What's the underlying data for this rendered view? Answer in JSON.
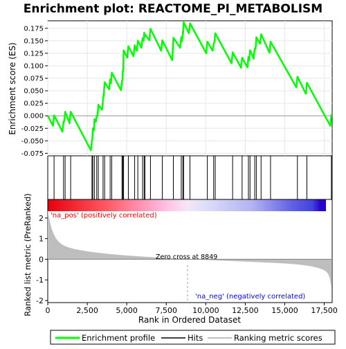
{
  "chart_data": {
    "type": "line",
    "title": "Enrichment plot: REACTOME_PI_METABOLISM",
    "xlabel": "Rank in Ordered Dataset",
    "ylabel_top": "Enrichment score (ES)",
    "ylabel_bottom": "Ranked list metric (PreRanked)",
    "xlim": [
      0,
      18000
    ],
    "x_ticks": [
      0,
      2500,
      5000,
      7500,
      10000,
      12500,
      15000,
      17500
    ],
    "x_tick_labels": [
      "0",
      "2,500",
      "5,000",
      "7,500",
      "10,000",
      "12,500",
      "15,000",
      "17,500"
    ],
    "es_ylim": [
      -0.08,
      0.19
    ],
    "es_ticks": [
      -0.075,
      -0.05,
      -0.025,
      0.0,
      0.025,
      0.05,
      0.075,
      0.1,
      0.125,
      0.15,
      0.175
    ],
    "es_tick_labels": [
      "-0.075",
      "-0.050",
      "-0.025",
      "0.000",
      "0.025",
      "0.050",
      "0.075",
      "0.100",
      "0.125",
      "0.150",
      "0.175"
    ],
    "metric_ylim": [
      -2.1,
      2.9
    ],
    "metric_ticks": [
      -2,
      -1,
      0,
      1,
      2
    ],
    "metric_tick_labels": [
      "-2",
      "-1",
      "0",
      "1",
      "2"
    ],
    "hits": [
      400,
      1000,
      1100,
      1450,
      2800,
      2850,
      2950,
      3100,
      3200,
      3500,
      3600,
      3950,
      4050,
      4700,
      4750,
      4800,
      5100,
      5500,
      5700,
      6000,
      6100,
      6150,
      6500,
      7250,
      7950,
      8450,
      8550,
      8600,
      9000,
      10100,
      10500,
      10600,
      11700,
      12300,
      12700,
      12800,
      13100,
      13200,
      13500,
      14100,
      15800,
      16400,
      17950
    ],
    "es_points": [
      [
        0,
        0.0
      ],
      [
        330,
        -0.02
      ],
      [
        400,
        0.001
      ],
      [
        930,
        -0.032
      ],
      [
        1000,
        -0.011
      ],
      [
        1050,
        -0.011
      ],
      [
        1100,
        0.008
      ],
      [
        1380,
        -0.015
      ],
      [
        1450,
        0.008
      ],
      [
        2730,
        -0.069
      ],
      [
        2800,
        -0.048
      ],
      [
        2820,
        -0.048
      ],
      [
        2850,
        -0.025
      ],
      [
        2920,
        -0.029
      ],
      [
        2950,
        -0.007
      ],
      [
        3050,
        -0.012
      ],
      [
        3100,
        0.0
      ],
      [
        3150,
        0.0
      ],
      [
        3200,
        0.022
      ],
      [
        3430,
        0.012
      ],
      [
        3500,
        0.032
      ],
      [
        3550,
        0.046
      ],
      [
        3600,
        0.067
      ],
      [
        3880,
        0.053
      ],
      [
        3950,
        0.073
      ],
      [
        4000,
        0.065
      ],
      [
        4050,
        0.086
      ],
      [
        4640,
        0.051
      ],
      [
        4700,
        0.071
      ],
      [
        4730,
        0.071
      ],
      [
        4750,
        0.09
      ],
      [
        4770,
        0.09
      ],
      [
        4800,
        0.131
      ],
      [
        5030,
        0.116
      ],
      [
        5100,
        0.139
      ],
      [
        5430,
        0.119
      ],
      [
        5500,
        0.141
      ],
      [
        5630,
        0.13
      ],
      [
        5700,
        0.15
      ],
      [
        5930,
        0.136
      ],
      [
        6000,
        0.155
      ],
      [
        6060,
        0.15
      ],
      [
        6100,
        0.166
      ],
      [
        6130,
        0.158
      ],
      [
        6150,
        0.163
      ],
      [
        6430,
        0.151
      ],
      [
        6500,
        0.174
      ],
      [
        7180,
        0.13
      ],
      [
        7250,
        0.151
      ],
      [
        7880,
        0.111
      ],
      [
        7950,
        0.156
      ],
      [
        8380,
        0.136
      ],
      [
        8450,
        0.157
      ],
      [
        8500,
        0.149
      ],
      [
        8550,
        0.169
      ],
      [
        8570,
        0.165
      ],
      [
        8600,
        0.187
      ],
      [
        8930,
        0.165
      ],
      [
        9000,
        0.185
      ],
      [
        10030,
        0.125
      ],
      [
        10100,
        0.148
      ],
      [
        10430,
        0.13
      ],
      [
        10500,
        0.145
      ],
      [
        10550,
        0.147
      ],
      [
        10600,
        0.165
      ],
      [
        11630,
        0.105
      ],
      [
        11700,
        0.127
      ],
      [
        12230,
        0.096
      ],
      [
        12300,
        0.116
      ],
      [
        12630,
        0.097
      ],
      [
        12700,
        0.118
      ],
      [
        12750,
        0.111
      ],
      [
        12800,
        0.131
      ],
      [
        13030,
        0.114
      ],
      [
        13100,
        0.135
      ],
      [
        13150,
        0.134
      ],
      [
        13200,
        0.157
      ],
      [
        13430,
        0.144
      ],
      [
        13500,
        0.163
      ],
      [
        14030,
        0.126
      ],
      [
        14100,
        0.148
      ],
      [
        15730,
        0.057
      ],
      [
        15800,
        0.078
      ],
      [
        16330,
        0.044
      ],
      [
        16400,
        0.066
      ],
      [
        17880,
        -0.02
      ],
      [
        17950,
        0.003
      ]
    ],
    "zero_cross": 8849,
    "zero_cross_label": "Zero cross at 8849",
    "pos_label": "'na_pos' (positively correlated)",
    "neg_label": "'na_neg' (negatively correlated)",
    "legend": [
      "Enrichment profile",
      "Hits",
      "Ranking metric scores"
    ],
    "colors": {
      "profile": "#00ff00",
      "hits": "#000000",
      "metric": "#bebebe",
      "pos_text": "#ff0000",
      "neg_text": "#0000ff",
      "zero_line": "#a0a0a0"
    }
  }
}
